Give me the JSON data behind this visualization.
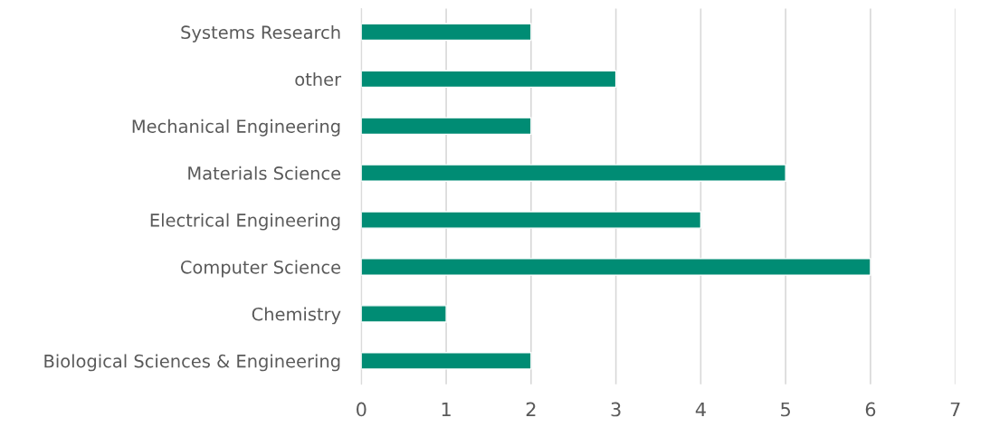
{
  "chart_data": {
    "type": "bar",
    "orientation": "horizontal",
    "categories": [
      "Systems Research",
      "other",
      "Mechanical Engineering",
      "Materials Science",
      "Electrical Engineering",
      "Computer Science",
      "Chemistry",
      "Biological Sciences & Engineering"
    ],
    "values": [
      2,
      3,
      2,
      5,
      4,
      6,
      1,
      2
    ],
    "color": "#008c74",
    "xlim": [
      0,
      7
    ],
    "xticks": [
      0,
      1,
      2,
      3,
      4,
      5,
      6,
      7
    ],
    "grid": "x"
  }
}
